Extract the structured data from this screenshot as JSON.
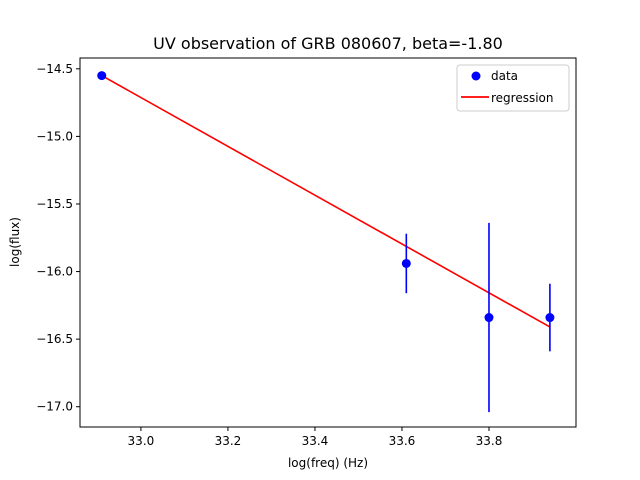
{
  "chart_data": {
    "type": "scatter",
    "title": "UV observation of GRB 080607, beta=-1.80",
    "xlabel": "log(freq) (Hz)",
    "ylabel": "log(flux)",
    "xlim": [
      32.86,
      34.0
    ],
    "ylim": [
      -17.15,
      -14.42
    ],
    "xticks": [
      33.0,
      33.2,
      33.4,
      33.6,
      33.8
    ],
    "xtick_labels": [
      "33.0",
      "33.2",
      "33.4",
      "33.6",
      "33.8"
    ],
    "yticks": [
      -14.5,
      -15.0,
      -15.5,
      -16.0,
      -16.5,
      -17.0
    ],
    "ytick_labels": [
      "−14.5",
      "−15.0",
      "−15.5",
      "−16.0",
      "−16.5",
      "−17.0"
    ],
    "grid": false,
    "legend_position": "top-right",
    "series": [
      {
        "name": "data",
        "kind": "errorbar-points",
        "color": "#0000ff",
        "x": [
          32.91,
          33.61,
          33.8,
          33.94
        ],
        "y": [
          -14.55,
          -15.94,
          -16.34,
          -16.34
        ],
        "yerr": [
          0.0,
          0.22,
          0.7,
          0.25
        ]
      },
      {
        "name": "regression",
        "kind": "line",
        "color": "#ff0000",
        "x": [
          32.91,
          33.94
        ],
        "y": [
          -14.55,
          -16.41
        ]
      }
    ]
  }
}
